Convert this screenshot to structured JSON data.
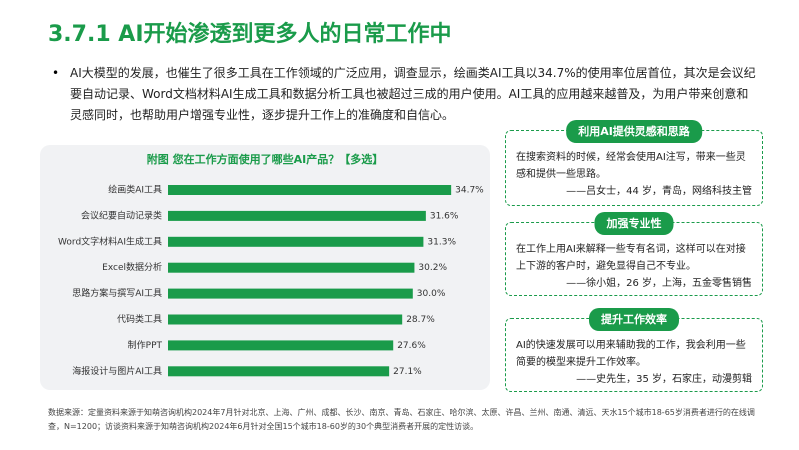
{
  "header": {
    "title": "3.7.1 AI开始渗透到更多人的日常工作中"
  },
  "intro": "AI大模型的发展，也催生了很多工具在工作领域的广泛应用，调查显示，绘画类AI工具以34.7%的使用率位居首位，其次是会议纪要自动记录、Word文档材料AI生成工具和数据分析工具也被超过三成的用户使用。AI工具的应用越来越普及，为用户带来创意和灵感同时，也帮助用户增强专业性，逐步提升工作上的准确度和自信心。",
  "chart_data": {
    "type": "bar",
    "orientation": "horizontal",
    "title": "附图 您在工作方面使用了哪些AI产品？【多选】",
    "categories": [
      "绘画类AI工具",
      "会议纪要自动记录类",
      "Word文字材料AI生成工具",
      "Excel数据分析",
      "思路方案与撰写AI工具",
      "代码类工具",
      "制作PPT",
      "海报设计与图片AI工具"
    ],
    "values": [
      34.7,
      31.6,
      31.3,
      30.2,
      30.0,
      28.7,
      27.6,
      27.1
    ],
    "value_labels": [
      "34.7%",
      "31.6%",
      "31.3%",
      "30.2%",
      "30.0%",
      "28.7%",
      "27.6%",
      "27.1%"
    ],
    "color": "#1a9b4a"
  },
  "quotes": [
    {
      "heading": "利用AI提供灵感和思路",
      "text": "在搜索资料的时候，经常会使用AI注写，带来一些灵感和提供一些思路。",
      "attribution": "——吕女士，44 岁，青岛，网络科技主管"
    },
    {
      "heading": "加强专业性",
      "text": "在工作上用AI来解释一些专有名词，这样可以在对接上下游的客户时，避免显得自己不专业。",
      "attribution": "——徐小姐，26 岁，上海，五金零售销售"
    },
    {
      "heading": "提升工作效率",
      "text": "AI的快速发展可以用来辅助我的工作，我会利用一些简要的模型来提升工作效率。",
      "attribution": "——史先生，35 岁，石家庄，动漫剪辑"
    }
  ],
  "footnote": "数据来源：定量资料来源于知萌咨询机构2024年7月针对北京、上海、广州、成都、长沙、南京、青岛、石家庄、哈尔滨、太原、许昌、兰州、南通、清远、天水15个城市18-65岁消费者进行的在线调查，N=1200；访谈资料来源于知萌咨询机构2024年6月针对全国15个城市18-60岁的30个典型消费者开展的定性访谈。"
}
